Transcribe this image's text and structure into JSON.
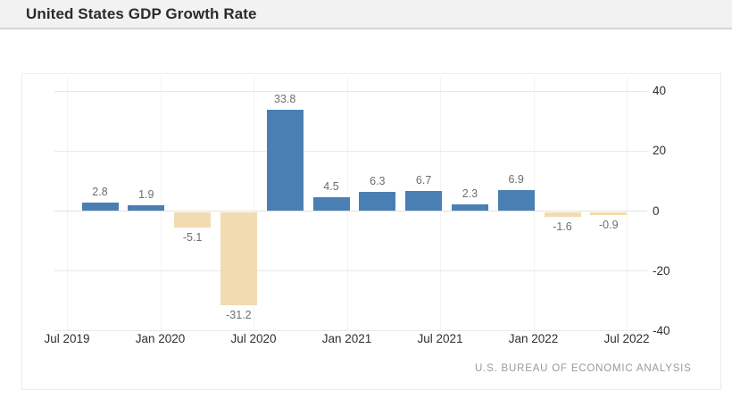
{
  "header": {
    "title": "United States GDP Growth Rate"
  },
  "chart_data": {
    "type": "bar",
    "title": "United States GDP Growth Rate",
    "values": [
      2.8,
      1.9,
      -5.1,
      -31.2,
      33.8,
      4.5,
      6.3,
      6.7,
      2.3,
      6.9,
      -1.6,
      -0.9
    ],
    "value_labels": [
      "2.8",
      "1.9",
      "-5.1",
      "-31.2",
      "33.8",
      "4.5",
      "6.3",
      "6.7",
      "2.3",
      "6.9",
      "-1.6",
      "-0.9"
    ],
    "x_ticks": [
      "Jul 2019",
      "Jan 2020",
      "Jul 2020",
      "Jan 2021",
      "Jul 2021",
      "Jan 2022",
      "Jul 2022"
    ],
    "bars_per_x_tick_interval": 2,
    "y_ticks": [
      "40",
      "20",
      "0",
      "-20",
      "-40"
    ],
    "y_tick_values": [
      40,
      20,
      0,
      -20,
      -40
    ],
    "ylim": [
      -40,
      45
    ],
    "grid": true,
    "legend": "none",
    "colors": {
      "positive_bar": "#4a7fb3",
      "negative_bar": "#f2dbb0",
      "gridline": "#e9e9e9",
      "value_label": "#6e6e6e",
      "axis_label": "#2f2f2f",
      "source_text": "#9a9a9a"
    },
    "source": "U.S. BUREAU OF ECONOMIC ANALYSIS"
  }
}
